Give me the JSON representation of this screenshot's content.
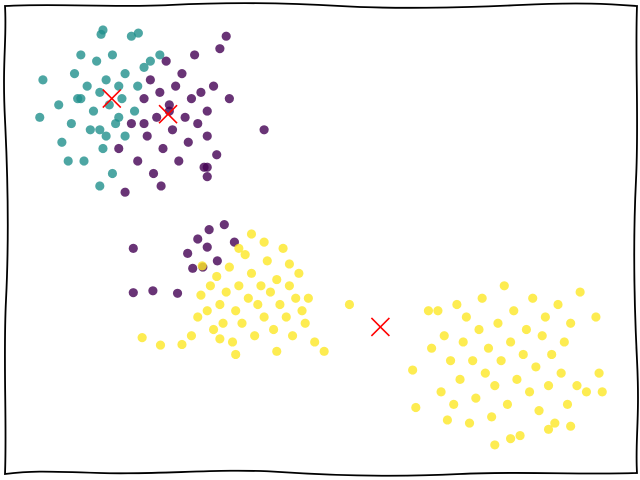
{
  "chart_data": {
    "type": "scatter",
    "xlim": [
      0,
      100
    ],
    "ylim": [
      0,
      75
    ],
    "series": [
      {
        "color": "#21908c",
        "marker": "o",
        "x": [
          5.5,
          6,
          8.5,
          9,
          10.5,
          11,
          12,
          12.5,
          13,
          14,
          14.5,
          15,
          15,
          15.5,
          16,
          16.5,
          17,
          17.5,
          18,
          18.5,
          19,
          19,
          20,
          20.5,
          21,
          15.5,
          15,
          13.5,
          17,
          22,
          23,
          11.5,
          12,
          18,
          16,
          10,
          24.5,
          15.2,
          21.1
        ],
        "y": [
          57,
          63,
          59,
          53,
          56,
          64,
          60,
          50,
          62,
          58,
          66,
          55,
          61,
          52,
          63,
          59,
          67,
          56,
          62,
          60,
          64,
          54,
          70,
          58,
          62,
          71,
          46,
          55,
          48,
          65,
          66,
          60,
          67,
          57,
          54,
          50,
          67,
          70.3,
          70.5
        ]
      },
      {
        "color": "#440154",
        "marker": "o",
        "x": [
          18,
          19,
          20,
          21,
          22,
          22.5,
          23,
          23.5,
          24,
          24.5,
          25,
          25.5,
          26,
          26.5,
          27,
          27.5,
          28,
          28.5,
          29,
          29.5,
          30,
          30.5,
          31,
          31.5,
          32,
          32,
          33,
          33.5,
          34,
          35,
          35.5,
          24.7,
          26,
          22,
          41,
          32,
          32,
          20.3,
          20.3,
          23.4,
          27.3,
          28.9,
          32.3,
          34.7,
          36.3,
          31.3,
          29.7,
          32,
          33.6,
          30.5
        ],
        "y": [
          52,
          45,
          56,
          50,
          60,
          54,
          63,
          48,
          57,
          61,
          52,
          66,
          59,
          55,
          62,
          50,
          64,
          57,
          53,
          60,
          67,
          56,
          61,
          49,
          54,
          58,
          62,
          51,
          68,
          70,
          60,
          46,
          58,
          56,
          55,
          47.5,
          49,
          36,
          28.9,
          29.2,
          28.8,
          35.2,
          39,
          39.8,
          37,
          33,
          32.8,
          36.2,
          34,
          37.5
        ]
      },
      {
        "color": "#fde725",
        "marker": "o",
        "x": [
          21.7,
          24.6,
          28,
          29.5,
          30.5,
          31,
          32,
          32.5,
          33,
          33.5,
          34,
          34.5,
          35,
          35.5,
          36,
          36.5,
          37,
          37.5,
          38,
          38.5,
          39,
          39.5,
          40,
          40.5,
          41,
          41.5,
          42,
          42.5,
          43,
          43.5,
          44,
          44.5,
          45,
          45.5,
          46,
          46.5,
          47,
          47.5,
          49,
          50.5,
          36.5,
          43,
          39,
          37,
          41,
          45,
          31.2,
          54.5,
          34,
          48,
          64.5,
          65,
          67.5,
          68.5,
          69,
          69.5,
          70.5,
          71,
          71.5,
          72,
          72.5,
          73,
          73.5,
          74,
          74.5,
          75,
          75.5,
          76,
          76.5,
          77,
          77.5,
          78,
          78.5,
          79,
          79.5,
          80,
          80.5,
          81,
          81.5,
          82,
          82.5,
          83,
          83.5,
          84,
          84.5,
          85,
          85.5,
          86,
          86.5,
          87,
          87.5,
          88,
          88.5,
          89,
          89.5,
          90.5,
          91,
          92,
          93.5,
          94,
          94.5,
          77.5,
          80,
          86,
          89.5,
          67,
          70
        ],
        "y": [
          21.7,
          20.5,
          20.6,
          22,
          25,
          28.5,
          26,
          30,
          23,
          31.5,
          27,
          24,
          29,
          33,
          21,
          26,
          30,
          24,
          35,
          28,
          32,
          22,
          27,
          30,
          25,
          34,
          29,
          23,
          31,
          27,
          36,
          25,
          30,
          22,
          28,
          32,
          26,
          24,
          21,
          19.5,
          19,
          19.5,
          38.3,
          36,
          37,
          33.5,
          33.2,
          27,
          21.5,
          28,
          16.5,
          10.5,
          20,
          26,
          13,
          22,
          18,
          11,
          27,
          15,
          21,
          25,
          8,
          18,
          12,
          23,
          28,
          16,
          20,
          9,
          14,
          24,
          18,
          30,
          11,
          21,
          26,
          15,
          6,
          19,
          23,
          13,
          28,
          17,
          10,
          22,
          25,
          14,
          19,
          8,
          27,
          16,
          21,
          11,
          24,
          14,
          29,
          13,
          25,
          16,
          13,
          4.5,
          5.5,
          7,
          7.5,
          26,
          8.5
        ]
      },
      {
        "color": "#ff0000",
        "marker": "x",
        "x": [
          16.9,
          25.8,
          59.4
        ],
        "y": [
          60,
          57.5,
          23.4
        ]
      }
    ]
  }
}
